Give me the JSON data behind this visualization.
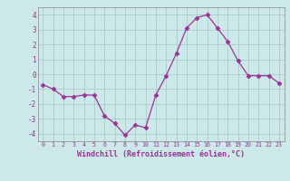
{
  "x": [
    0,
    1,
    2,
    3,
    4,
    5,
    6,
    7,
    8,
    9,
    10,
    11,
    12,
    13,
    14,
    15,
    16,
    17,
    18,
    19,
    20,
    21,
    22,
    23
  ],
  "y": [
    -0.7,
    -1.0,
    -1.5,
    -1.5,
    -1.4,
    -1.4,
    -2.8,
    -3.3,
    -4.1,
    -3.4,
    -3.6,
    -1.4,
    -0.1,
    1.4,
    3.1,
    3.8,
    4.0,
    3.1,
    2.2,
    0.9,
    -0.1,
    -0.1,
    -0.1,
    -0.6
  ],
  "line_color": "#993399",
  "marker": "D",
  "markersize": 2.5,
  "bg_color": "#cce8e8",
  "grid_color": "#aacccc",
  "xlabel": "Windchill (Refroidissement éolien,°C)",
  "xlabel_color": "#993399",
  "tick_color": "#993399",
  "ylim": [
    -4.5,
    4.5
  ],
  "xlim": [
    -0.5,
    23.5
  ],
  "yticks": [
    -4,
    -3,
    -2,
    -1,
    0,
    1,
    2,
    3,
    4
  ],
  "xticks": [
    0,
    1,
    2,
    3,
    4,
    5,
    6,
    7,
    8,
    9,
    10,
    11,
    12,
    13,
    14,
    15,
    16,
    17,
    18,
    19,
    20,
    21,
    22,
    23
  ]
}
